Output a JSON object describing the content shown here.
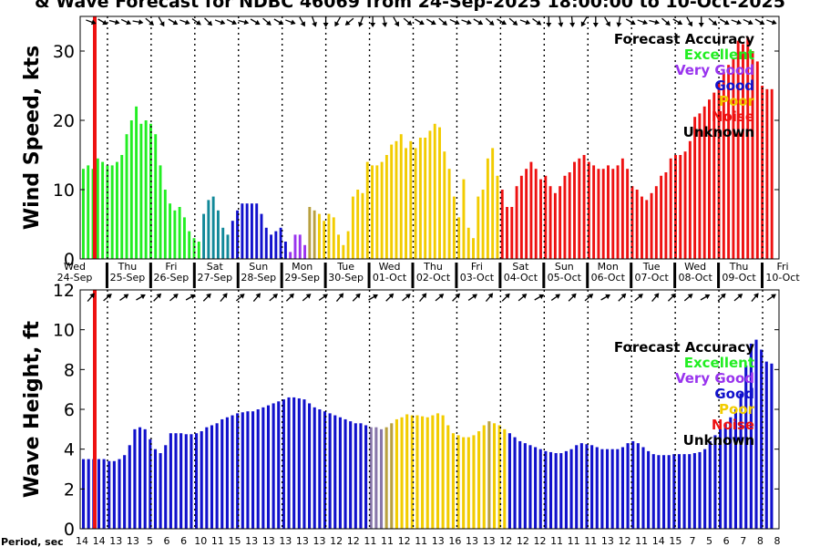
{
  "title": "& Wave Forecast for NDBC 46069 from 24-Sep-2025 18:00:00 to 10-Oct-2025",
  "forecast_accuracy": {
    "heading": "Forecast Accuracy",
    "levels": [
      {
        "label": "Excellent",
        "color": "#22ee22"
      },
      {
        "label": "Very Good",
        "color": "#9933ee"
      },
      {
        "label": "Good",
        "color": "#1111cc"
      },
      {
        "label": "Poor",
        "color": "#f2cc00"
      },
      {
        "label": "Noise",
        "color": "#ee1111"
      },
      {
        "label": "Unknown",
        "color": "#000000"
      }
    ]
  },
  "period_label": "Period, sec",
  "period_values": [
    "14",
    "14",
    "13",
    "13",
    "5",
    "6",
    "6",
    "10",
    "11",
    "15",
    "13",
    "13",
    "13",
    "13",
    "13",
    "12",
    "12",
    "11",
    "11",
    "12",
    "11",
    "13",
    "16",
    "13",
    "13",
    "12",
    "12",
    "12",
    "11",
    "11",
    "11",
    "13",
    "12",
    "11",
    "14",
    "15",
    "7",
    "5",
    "6",
    "7",
    "8",
    "8"
  ],
  "chart_data": [
    {
      "type": "bar",
      "ylabel": "Wind Speed, kts",
      "ylim": [
        0,
        35
      ],
      "yticks": [
        0,
        10,
        20,
        30
      ],
      "day_labels": [
        {
          "day": "Wed",
          "date": "24-Sep"
        },
        {
          "day": "Thu",
          "date": "25-Sep"
        },
        {
          "day": "Fri",
          "date": "26-Sep"
        },
        {
          "day": "Sat",
          "date": "27-Sep"
        },
        {
          "day": "Sun",
          "date": "28-Sep"
        },
        {
          "day": "Mon",
          "date": "29-Sep"
        },
        {
          "day": "Tue",
          "date": "30-Sep"
        },
        {
          "day": "Wed",
          "date": "01-Oct"
        },
        {
          "day": "Thu",
          "date": "02-Oct"
        },
        {
          "day": "Fri",
          "date": "03-Oct"
        },
        {
          "day": "Sat",
          "date": "04-Oct"
        },
        {
          "day": "Sun",
          "date": "05-Oct"
        },
        {
          "day": "Mon",
          "date": "06-Oct"
        },
        {
          "day": "Tue",
          "date": "07-Oct"
        },
        {
          "day": "Wed",
          "date": "08-Oct"
        },
        {
          "day": "Thu",
          "date": "09-Oct"
        },
        {
          "day": "Fri",
          "date": "10-Oct"
        }
      ],
      "segments": [
        {
          "accuracy": "Excellent",
          "values": [
            13,
            13.5,
            13,
            14.5,
            14,
            13.5,
            13.5,
            14,
            15,
            18,
            20,
            22,
            19.5,
            20,
            19.5,
            18,
            13.5,
            10,
            8,
            7,
            7.5,
            6,
            4,
            3,
            2.5
          ]
        },
        {
          "accuracy": "Teal",
          "color": "#118899",
          "values": [
            6.5,
            8.5,
            9,
            7,
            4.5,
            3.5
          ]
        },
        {
          "accuracy": "Good",
          "values": [
            5.5,
            7,
            8,
            8,
            8,
            8,
            6.5,
            4.5,
            3.5,
            4,
            4.5,
            2.5
          ]
        },
        {
          "accuracy": "Very Good",
          "values": [
            1,
            3.5,
            3.5,
            2
          ]
        },
        {
          "accuracy": "Mixed",
          "color": "#b8a040",
          "values": [
            7.5,
            7
          ]
        },
        {
          "accuracy": "Poor",
          "values": [
            6.5,
            5.5,
            6.5,
            6,
            3.5,
            2,
            4,
            9,
            10,
            9.5,
            14,
            13.5,
            13.5,
            14,
            15,
            16.5,
            17,
            18,
            16,
            17,
            16,
            17.5,
            17.5,
            18.5,
            19.5,
            19,
            15.5,
            13,
            9,
            6,
            11.5,
            4.5,
            3,
            9,
            10,
            14.5,
            16,
            12
          ]
        },
        {
          "accuracy": "Noise",
          "values": [
            10,
            7.5,
            7.5,
            10.5,
            12,
            13,
            14,
            13,
            11.5,
            12,
            10.5,
            9.5,
            10.5,
            12,
            12.5,
            14,
            14.5,
            15,
            14,
            13.5,
            13,
            13,
            13.5,
            13,
            13.5,
            14.5,
            13,
            10.5,
            10,
            9,
            8.5,
            9.5,
            10.5,
            12,
            12.5,
            14.5,
            15,
            15,
            15.5,
            17,
            20.5,
            21,
            22,
            23,
            24,
            25.5,
            27,
            28,
            29,
            31.5,
            31,
            32,
            30,
            28.5,
            25,
            24.5,
            24.5
          ]
        }
      ]
    },
    {
      "type": "bar",
      "ylabel": "Wave Height, ft",
      "ylim": [
        0,
        12
      ],
      "yticks": [
        0,
        2,
        4,
        6,
        8,
        10,
        12
      ],
      "segments": [
        {
          "accuracy": "Good",
          "values": [
            3.5,
            3.5,
            3.5,
            3.5,
            3.5,
            3.4,
            3.4,
            3.5,
            3.7,
            4.2,
            5,
            5.1,
            5,
            4.5,
            4,
            3.8,
            4.2,
            4.8,
            4.8,
            4.8,
            4.75,
            4.75,
            4.8,
            4.9,
            5.1,
            5.2,
            5.3,
            5.5,
            5.6,
            5.7,
            5.8,
            5.85,
            5.9,
            5.9,
            6,
            6.1,
            6.2,
            6.3,
            6.4,
            6.5,
            6.6,
            6.6,
            6.55,
            6.5,
            6.3,
            6.1,
            6,
            5.9,
            5.8,
            5.7,
            5.6,
            5.5,
            5.4,
            5.3,
            5.3,
            5.2
          ]
        },
        {
          "accuracy": "Mixed",
          "color": "#8877aa",
          "values": [
            5.1,
            5.1,
            5
          ]
        },
        {
          "accuracy": "Mixed",
          "color": "#b8a040",
          "values": [
            5.1,
            5.3
          ]
        },
        {
          "accuracy": "Poor",
          "values": [
            5.5,
            5.6,
            5.75,
            5.7,
            5.7,
            5.65,
            5.6,
            5.7,
            5.8,
            5.7,
            5.2,
            4.8,
            4.7,
            4.6,
            4.6,
            4.7,
            4.9,
            5.2
          ]
        },
        {
          "accuracy": "Mixed",
          "color": "#b8a040",
          "values": [
            5.4
          ]
        },
        {
          "accuracy": "Poor",
          "values": [
            5.3,
            5.2,
            5
          ]
        },
        {
          "accuracy": "Good",
          "values": [
            4.8,
            4.6,
            4.4,
            4.3,
            4.2,
            4.1,
            4,
            3.9,
            3.85,
            3.8,
            3.8,
            3.9,
            4,
            4.2,
            4.3,
            4.25,
            4.2,
            4.1,
            4,
            4,
            4,
            4,
            4.1,
            4.3,
            4.4,
            4.3,
            4.1,
            3.9,
            3.75,
            3.7,
            3.7,
            3.7,
            3.75,
            3.75,
            3.75,
            3.75,
            3.8,
            3.85,
            4,
            4.4,
            4.7,
            5,
            5.3,
            5.6,
            6,
            6.8,
            8.2,
            9.3,
            9.5,
            9,
            8.4,
            8.3
          ]
        }
      ]
    }
  ]
}
